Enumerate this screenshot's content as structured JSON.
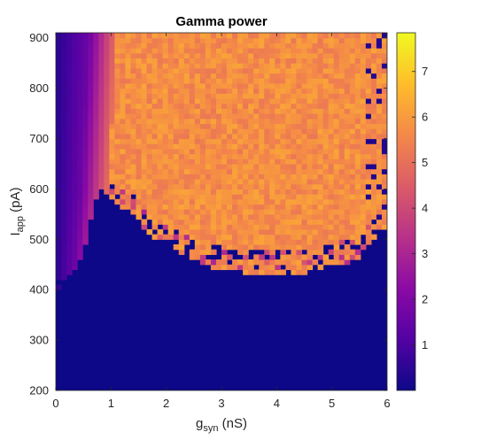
{
  "chart_data": {
    "type": "heatmap",
    "title": "Gamma power",
    "xlabel": {
      "main": "g",
      "subscript": "syn",
      "unit": " (nS)"
    },
    "ylabel": {
      "main": "I",
      "subscript": "app",
      "unit": " (pA)"
    },
    "xlim": [
      0,
      6
    ],
    "ylim": [
      200,
      910
    ],
    "x_ticks": [
      "0",
      "1",
      "2",
      "3",
      "4",
      "5",
      "6"
    ],
    "y_ticks": [
      "200",
      "300",
      "400",
      "500",
      "600",
      "700",
      "800",
      "900"
    ],
    "x_tick_values": [
      0,
      1,
      2,
      3,
      4,
      5,
      6
    ],
    "y_tick_values": [
      200,
      300,
      400,
      500,
      600,
      700,
      800,
      900
    ],
    "colorbar": {
      "range": [
        0,
        7.85
      ],
      "ticks": [
        "1",
        "2",
        "3",
        "4",
        "5",
        "6",
        "7"
      ],
      "tick_values": [
        1,
        2,
        3,
        4,
        5,
        6,
        7
      ],
      "colormap": "plasma"
    },
    "colormap_stops": [
      "#0d0887",
      "#5302a3",
      "#8b0aa5",
      "#b83289",
      "#db5c68",
      "#f48849",
      "#febd2a",
      "#f0f921"
    ],
    "regions": {
      "low_power_color": "#0d0887",
      "low_power_description_values": "near 0 below threshold boundary",
      "high_power_typical": 5.8,
      "boundary_points": [
        [
          0.0,
          420
        ],
        [
          0.3,
          440
        ],
        [
          0.5,
          480
        ],
        [
          0.65,
          560
        ],
        [
          0.8,
          610
        ],
        [
          1.0,
          585
        ],
        [
          1.3,
          560
        ],
        [
          1.6,
          520
        ],
        [
          2.0,
          490
        ],
        [
          2.5,
          460
        ],
        [
          3.0,
          445
        ],
        [
          3.5,
          440
        ],
        [
          4.0,
          435
        ],
        [
          4.5,
          440
        ],
        [
          5.0,
          450
        ],
        [
          5.5,
          470
        ],
        [
          5.8,
          510
        ],
        [
          6.0,
          530
        ]
      ],
      "left_band_edge": [
        [
          200,
          0.0
        ],
        [
          400,
          0.3
        ],
        [
          600,
          0.45
        ],
        [
          800,
          0.55
        ],
        [
          910,
          0.6
        ]
      ]
    },
    "grid": false
  }
}
